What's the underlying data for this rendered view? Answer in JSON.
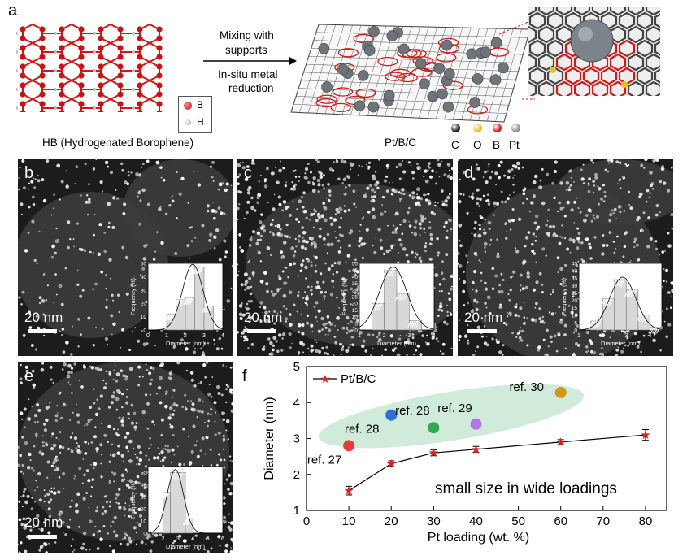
{
  "panels": {
    "a": "a",
    "b": "b",
    "c": "c",
    "d": "d",
    "e": "e",
    "f": "f"
  },
  "schematic": {
    "hb_caption": "HB (Hydrogenated Borophene)",
    "legend_b": "B",
    "legend_h": "H",
    "arrow_top_1": "Mixing with",
    "arrow_top_2": "supports",
    "arrow_bottom_1": "In-situ metal",
    "arrow_bottom_2": "reduction",
    "ptbc_caption": "Pt/B/C",
    "atoms": [
      {
        "label": "C",
        "color": "#222222"
      },
      {
        "label": "O",
        "color": "#e8c21a"
      },
      {
        "label": "B",
        "color": "#d21f1f"
      },
      {
        "label": "Pt",
        "color": "#8d939c"
      }
    ]
  },
  "scale_label": "20 nm",
  "histograms": [
    {
      "panel": "b",
      "ylabel": "Frequency (%)",
      "xlabel": "Diameter (nm)",
      "yticks": [
        "0",
        "10",
        "20",
        "30",
        "40",
        "50"
      ],
      "xticks": [
        "0",
        "1",
        "2",
        "3",
        "4"
      ],
      "xlim": [
        0,
        4
      ],
      "ylim": [
        0,
        50
      ],
      "bins": [
        [
          1,
          1.5,
          12
        ],
        [
          1.5,
          2,
          23
        ],
        [
          2,
          2.5,
          24
        ],
        [
          2.5,
          3,
          47
        ],
        [
          3,
          3.5,
          18
        ]
      ]
    },
    {
      "panel": "c",
      "ylabel": "Frequency (%)",
      "xlabel": "Diameter (nm)",
      "yticks": [
        "0",
        "5",
        "10",
        "15",
        "20",
        "25",
        "30",
        "35",
        "40",
        "45",
        "50"
      ],
      "xticks": [
        "1",
        "2",
        "3",
        "4"
      ],
      "xlim": [
        1,
        4
      ],
      "ylim": [
        0,
        50
      ],
      "bins": [
        [
          1.5,
          2,
          20
        ],
        [
          2,
          2.5,
          45
        ],
        [
          2.5,
          3,
          27
        ],
        [
          3,
          3.5,
          7
        ]
      ]
    },
    {
      "panel": "d",
      "ylabel": "Frequency (%)",
      "xlabel": "Diameter (nm)",
      "yticks": [
        "0",
        "5",
        "10",
        "15",
        "20",
        "25",
        "30",
        "35",
        "40",
        "45"
      ],
      "xticks": [
        "1",
        "2",
        "3",
        "4"
      ],
      "xlim": [
        1,
        4.5
      ],
      "ylim": [
        0,
        45
      ],
      "bins": [
        [
          1.5,
          2,
          6
        ],
        [
          2,
          2.5,
          21
        ],
        [
          2.5,
          3,
          34
        ],
        [
          3,
          3.5,
          27
        ],
        [
          3.5,
          4,
          10
        ],
        [
          4,
          4.5,
          2
        ]
      ]
    },
    {
      "panel": "e",
      "ylabel": "Frequency (%)",
      "xlabel": "Diameter (nm)",
      "yticks": [
        "0",
        "10",
        "20",
        "30",
        "40",
        "50"
      ],
      "xticks": [
        "1",
        "2",
        "3",
        "4",
        "5",
        "6"
      ],
      "xlim": [
        1,
        6
      ],
      "ylim": [
        0,
        55
      ],
      "bins": [
        [
          2,
          2.5,
          34
        ],
        [
          2.5,
          3.5,
          50
        ],
        [
          3.5,
          4,
          12
        ]
      ]
    }
  ],
  "chart_data": {
    "type": "scatter",
    "xlabel": "Pt loading (wt. %)",
    "ylabel": "Diameter (nm)",
    "xlim": [
      0,
      85
    ],
    "ylim": [
      1,
      5
    ],
    "xticks": [
      "0",
      "10",
      "20",
      "30",
      "40",
      "50",
      "60",
      "70",
      "80"
    ],
    "yticks": [
      "1",
      "2",
      "3",
      "4",
      "5"
    ],
    "legend": "Pt/B/C",
    "legend_position": "top-left",
    "annotation": "small size in wide loadings",
    "series": [
      {
        "name": "Pt/B/C",
        "color": "#e0201e",
        "x": [
          10,
          20,
          30,
          40,
          60,
          80
        ],
        "y": [
          1.55,
          2.3,
          2.6,
          2.7,
          2.9,
          3.1
        ],
        "err": [
          0.12,
          0.08,
          0.08,
          0.08,
          0.07,
          0.15
        ]
      }
    ],
    "references": [
      {
        "label": "ref. 27",
        "x": 10,
        "y": 2.8,
        "color": "#e63b3b"
      },
      {
        "label": "ref. 28",
        "x": 20,
        "y": 3.65,
        "color": "#2b6fd6"
      },
      {
        "label": "ref. 28",
        "x": 30,
        "y": 3.3,
        "color": "#33a855"
      },
      {
        "label": "ref. 29",
        "x": 40,
        "y": 3.4,
        "color": "#b276e8"
      },
      {
        "label": "ref. 30",
        "x": 60,
        "y": 4.28,
        "color": "#d3961e"
      }
    ]
  }
}
